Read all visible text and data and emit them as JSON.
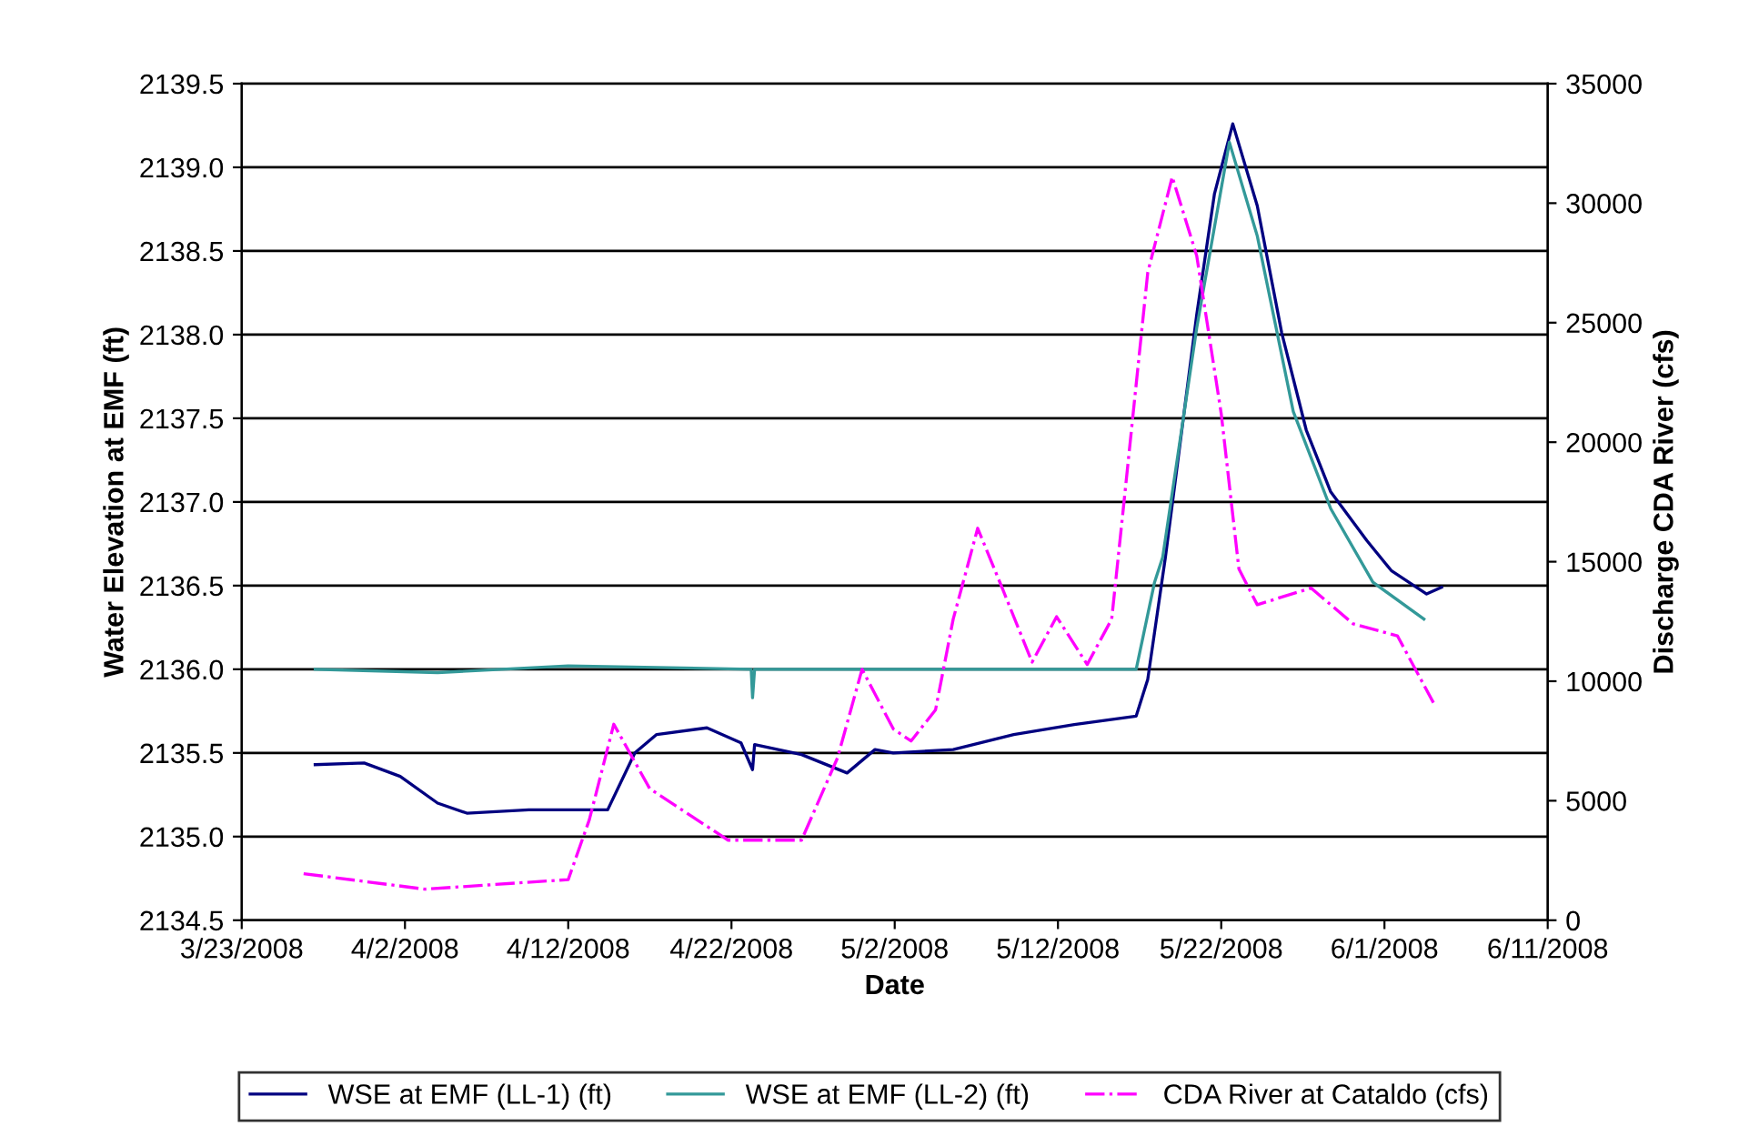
{
  "chart_data": {
    "type": "line",
    "xlabel": "Date",
    "ylabel": "Water Elevation at EMF (ft)",
    "y2label": "Discharge CDA River (cfs)",
    "xlim": [
      "2008-03-23",
      "2008-06-11"
    ],
    "xticks": [
      {
        "value": "2008-03-23",
        "label": "3/23/2008"
      },
      {
        "value": "2008-04-02",
        "label": "4/2/2008"
      },
      {
        "value": "2008-04-12",
        "label": "4/12/2008"
      },
      {
        "value": "2008-04-22",
        "label": "4/22/2008"
      },
      {
        "value": "2008-05-02",
        "label": "5/2/2008"
      },
      {
        "value": "2008-05-12",
        "label": "5/12/2008"
      },
      {
        "value": "2008-05-22",
        "label": "5/22/2008"
      },
      {
        "value": "2008-06-01",
        "label": "6/1/2008"
      },
      {
        "value": "2008-06-11",
        "label": "6/11/2008"
      }
    ],
    "ylim": [
      2134.5,
      2139.5
    ],
    "yticks": [
      2134.5,
      {
        "value": 2135,
        "label": "2135.0"
      },
      2135.5,
      {
        "value": 2136,
        "label": "2136.0"
      },
      2136.5,
      {
        "value": 2137,
        "label": "2137.0"
      },
      2137.5,
      {
        "value": 2138,
        "label": "2138.0"
      },
      2138.5,
      {
        "value": 2139,
        "label": "2139.0"
      },
      2139.5
    ],
    "y2lim": [
      0,
      35000
    ],
    "y2ticks": [
      0,
      5000,
      10000,
      15000,
      20000,
      25000,
      30000,
      35000
    ],
    "grid": "y",
    "legend": "bottom",
    "series": [
      {
        "name": "WSE at EMF (LL-1) (ft)",
        "color": "#000080",
        "line_style": "solid",
        "x": [
          "2008-03-27T12:00",
          "2008-03-30T12:00",
          "2008-04-01T17:00",
          "2008-04-04",
          "2008-04-05T19:00",
          "2008-04-09T14:00",
          "2008-04-13T14:00",
          "2008-04-14T10:00",
          "2008-04-16T02:00",
          "2008-04-17T10:00",
          "2008-04-20T12:00",
          "2008-04-22T14:00",
          "2008-04-23T07:00",
          "2008-04-23T10:00",
          "2008-04-26T07:00",
          "2008-04-29T02:00",
          "2008-04-30T19:00",
          "2008-05-01T22:00",
          "2008-05-05T14:00",
          "2008-05-09T07:00",
          "2008-05-13",
          "2008-05-16T19:00",
          "2008-05-17T12:00",
          "2008-05-18T14:00",
          "2008-05-20T12:00",
          "2008-05-21T14:00",
          "2008-05-22T17:00",
          "2008-05-24T05:00",
          "2008-05-25T17:00",
          "2008-05-27T05:00",
          "2008-05-28T17:00",
          "2008-05-30T22:00",
          "2008-06-01T10:00",
          "2008-06-03T14:00",
          "2008-06-04T12:00"
        ],
        "values": [
          2135.43,
          2135.44,
          2135.36,
          2135.2,
          2135.14,
          2135.16,
          2135.16,
          2135.16,
          2135.5,
          2135.61,
          2135.65,
          2135.56,
          2135.4,
          2135.55,
          2135.49,
          2135.38,
          2135.52,
          2135.5,
          2135.52,
          2135.61,
          2135.67,
          2135.72,
          2135.94,
          2136.67,
          2138.12,
          2138.84,
          2139.26,
          2138.77,
          2138.01,
          2137.43,
          2137.06,
          2136.77,
          2136.59,
          2136.45,
          2136.49
        ]
      },
      {
        "name": "WSE at EMF (LL-2) (ft)",
        "color": "#339999",
        "line_style": "solid",
        "x": [
          "2008-03-27T12:00",
          "2008-04-04",
          "2008-04-12",
          "2008-04-23T05:00",
          "2008-04-23T07:00",
          "2008-04-23T10:00",
          "2008-05-02",
          "2008-05-10",
          "2008-05-16T19:00",
          "2008-05-17T22:00",
          "2008-05-18T10:00",
          "2008-05-20T12:00",
          "2008-05-22T12:00",
          "2008-05-24T05:00",
          "2008-05-26T10:00",
          "2008-05-28T17:00",
          "2008-05-31T07:00",
          "2008-06-03T10:00"
        ],
        "values": [
          2136.0,
          2135.98,
          2136.02,
          2136.0,
          2135.83,
          2136.0,
          2136.0,
          2136.0,
          2136.0,
          2136.52,
          2136.67,
          2138.04,
          2139.15,
          2138.59,
          2137.54,
          2136.96,
          2136.52,
          2136.3
        ]
      },
      {
        "name": "CDA River at Cataldo (cfs)",
        "color": "#ff00ff",
        "line_style": "dashdot",
        "axis": "y2",
        "x": [
          "2008-03-26T19:00",
          "2008-04-03T05:00",
          "2008-04-12",
          "2008-04-13T07:00",
          "2008-04-14T19:00",
          "2008-04-17",
          "2008-04-21T19:00",
          "2008-04-26T07:00",
          "2008-04-28T12:00",
          "2008-04-30",
          "2008-05-01T22:00",
          "2008-05-03",
          "2008-05-04T12:00",
          "2008-05-05T14:00",
          "2008-05-07T02:00",
          "2008-05-08T14:00",
          "2008-05-10T10:00",
          "2008-05-11T22:00",
          "2008-05-13T19:00",
          "2008-05-15T07:00",
          "2008-05-16",
          "2008-05-17T12:00",
          "2008-05-19",
          "2008-05-20T12:00",
          "2008-05-22",
          "2008-05-23T02:00",
          "2008-05-24T05:00",
          "2008-05-27T12:00",
          "2008-05-30T02:00",
          "2008-06-01T19:00",
          "2008-06-04"
        ],
        "values": [
          1950,
          1300,
          1700,
          4200,
          8200,
          5500,
          3350,
          3350,
          6800,
          10500,
          8000,
          7500,
          8800,
          12600,
          16400,
          13900,
          10800,
          12700,
          10700,
          12600,
          17200,
          27100,
          31100,
          27800,
          21200,
          14700,
          13200,
          13900,
          12400,
          11900,
          9100
        ]
      }
    ]
  }
}
